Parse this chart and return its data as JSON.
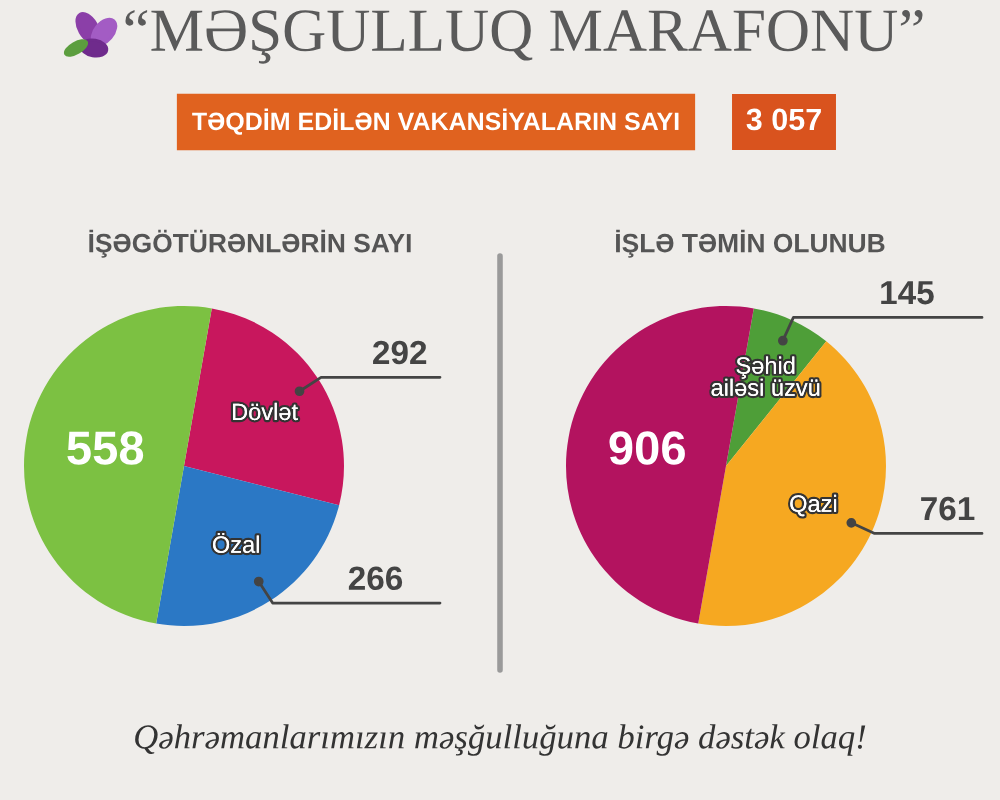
{
  "chart_data": [
    {
      "type": "other",
      "title": "“MƏŞGULLUQ MARAFONU”",
      "subtitle": "TƏQDİM EDİLƏN VAKANSİYALARIN SAYI",
      "annotations": [
        "3 057",
        "Qəhrəmanlarımızın məşğulluğuna birgə dəstək olaq!"
      ]
    },
    {
      "type": "pie",
      "title": "İŞƏGÖTÜRƏNLƏRİN SAYI",
      "categories": [
        "Dövlət",
        "Özal",
        null
      ],
      "values": [
        292,
        266,
        558
      ],
      "colors": [
        "#c8175d",
        "#2b78c5",
        "#7cc142"
      ],
      "data_labels": true
    },
    {
      "type": "pie",
      "title": "İŞLƏ TƏMİN OLUNUB",
      "categories": [
        "Şəhid\nailəsi üzvü",
        "Qazi",
        null
      ],
      "values": [
        145,
        761,
        906
      ],
      "colors": [
        "#4e9e38",
        "#f6a821",
        "#b3135f"
      ],
      "data_labels": true
    }
  ]
}
